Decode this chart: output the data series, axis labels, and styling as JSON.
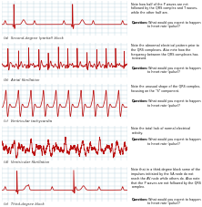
{
  "panels": [
    {
      "label": "(a)",
      "name": "Second-degree (partial) block",
      "type": "second_degree_block",
      "note": "Note how half of the P waves are not followed by the QRS complex and T waves, while the other half are.",
      "bold_q": "Question:",
      "question": " What would you expect to happen to heart rate (pulse)?"
    },
    {
      "label": "(b)",
      "name": "Atrial fibrillation",
      "type": "atrial_fibrillation",
      "note": "Note the abnormal electrical pattern prior to the QRS complexes. Also note how the frequency between the QRS complexes has increased.",
      "bold_q": "Question:",
      "question": " What would you expect to happen to heart rate (pulse)?"
    },
    {
      "label": "(c)",
      "name": "Ventricular tachycardia",
      "type": "ventricular_tachycardia",
      "note": "Note the unusual shape of the QRS complex, focusing on the \"S\" component.",
      "bold_q": "Question:",
      "question": " What would you expect to happen to heart rate (pulse)?"
    },
    {
      "label": "(d)",
      "name": "Ventricular fibrillation",
      "type": "ventricular_fibrillation",
      "note": "Note the total lack of normal electrical activity.",
      "bold_q": "Question:",
      "question": " What would you expect to happen to heart rate (pulse)?"
    },
    {
      "label": "(e)",
      "name": "Third-degree block",
      "type": "third_degree_block",
      "note": "Note that in a third-degree block some of the impulses initiated by the SA node do not reach the AV node while others do. Also note that the P waves are not followed by the QRS complex.",
      "bold_q": "Question:",
      "question": " What would you expect to happen to heart rate (pulse)?"
    }
  ],
  "bg_color": "#cce8f0",
  "grid_color": "#b0d0dc",
  "line_color": "#bb1111",
  "fig_bg": "#ffffff",
  "label_color": "#333333",
  "text_color": "#111111",
  "bold_color": "#000000"
}
